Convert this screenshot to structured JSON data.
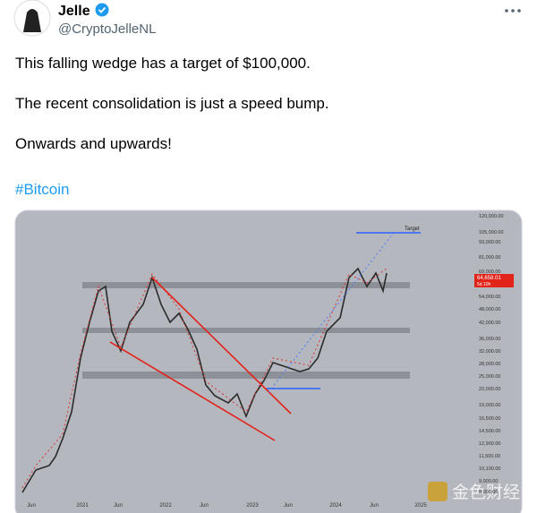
{
  "author": {
    "name": "Jelle",
    "handle": "@CryptoJelleNL"
  },
  "tweet": {
    "lines": [
      "This falling wedge has a target of $100,000.",
      "The recent consolidation is just a speed bump.",
      "Onwards and upwards!"
    ],
    "hashtag": "#Bitcoin"
  },
  "embedded_chart": {
    "target_label": "Target",
    "price_tag": "64,658.01",
    "countdown": "5d 10h",
    "y_axis_labels": [
      "120,000.00",
      "105,000.00",
      "93,000.00",
      "81,000.00",
      "69,000.00",
      "54,000.00",
      "48,000.00",
      "42,000.00",
      "36,000.00",
      "32,000.00",
      "28,000.00",
      "25,000.00",
      "22,000.00",
      "19,000.00",
      "16,500.00",
      "14,500.00",
      "12,900.00",
      "11,500.00",
      "10,100.00",
      "9,000.00",
      "8,000.00"
    ],
    "x_axis_labels": [
      "Jun",
      "2021",
      "Jun",
      "2022",
      "Jun",
      "2023",
      "Jun",
      "2024",
      "Jun",
      "2025"
    ]
  },
  "watermark": "金色财经"
}
